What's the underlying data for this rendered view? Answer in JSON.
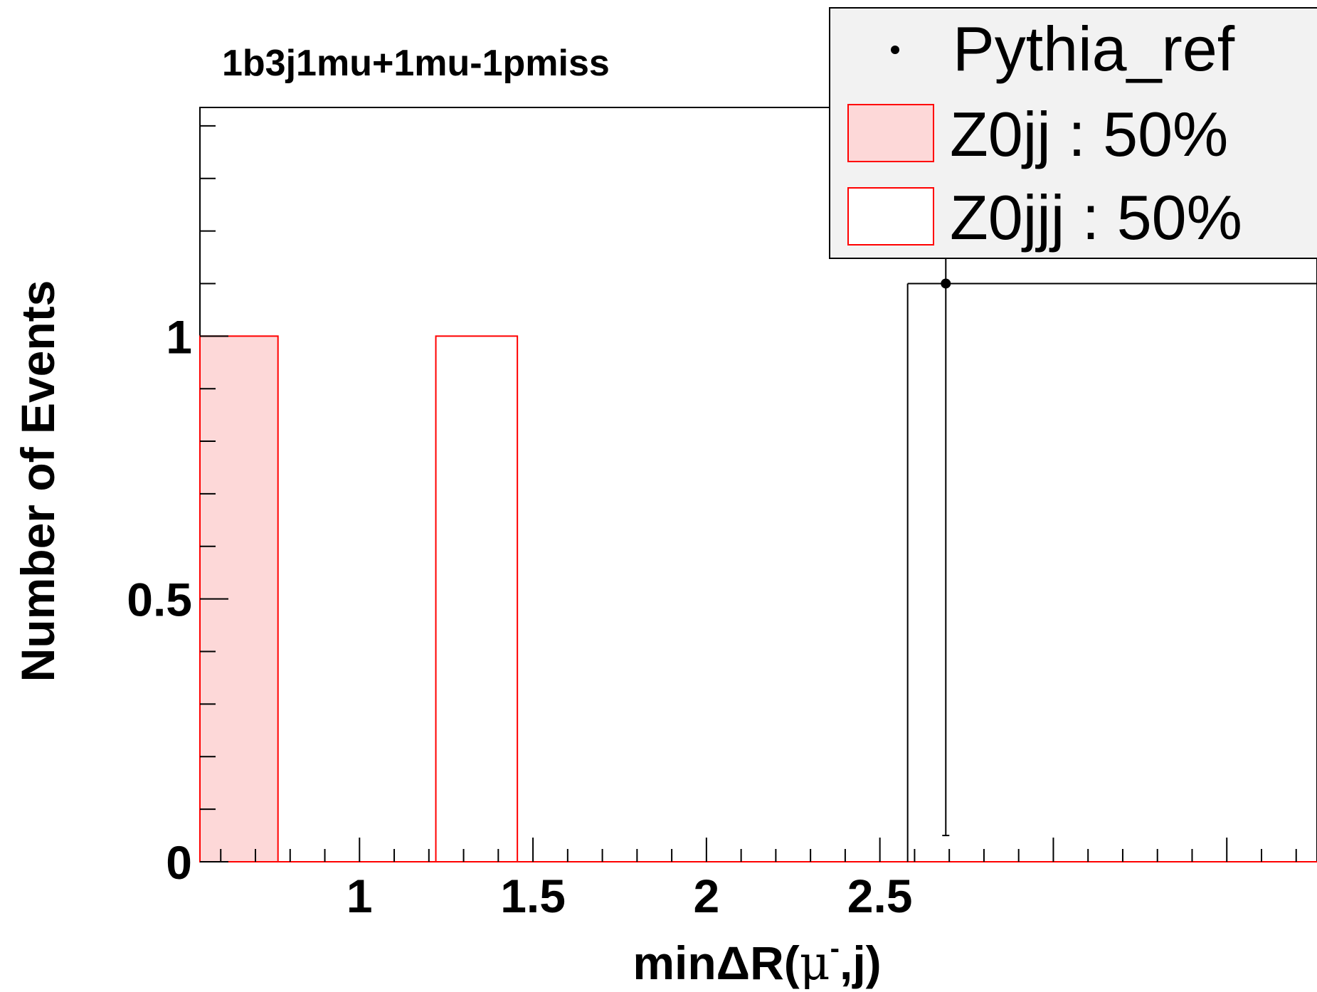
{
  "chart_data": {
    "type": "bar",
    "title": "1b3j1mu+1mu-1pmiss",
    "xlabel_parts": [
      "min",
      "ΔR(",
      "μ",
      "-",
      ",j)"
    ],
    "ylabel": "Number of Events",
    "xlim": [
      0.54,
      3.76
    ],
    "ylim": [
      0,
      1.435
    ],
    "x_ticks": [
      {
        "value": 1,
        "label": "1"
      },
      {
        "value": 1.5,
        "label": "1.5"
      },
      {
        "value": 2,
        "label": "2"
      },
      {
        "value": 2.5,
        "label": "2.5"
      }
    ],
    "y_ticks": [
      {
        "value": 0,
        "label": "0"
      },
      {
        "value": 0.5,
        "label": "0.5"
      },
      {
        "value": 1,
        "label": "1"
      }
    ],
    "series": [
      {
        "name": "Z0jj : 50%",
        "style": "filled",
        "fill": "#fdd8d8",
        "stroke": "#ff0000",
        "bins": [
          {
            "x0": 0.54,
            "x1": 0.765,
            "value": 1
          }
        ]
      },
      {
        "name": "Z0jjj : 50%",
        "style": "hollow",
        "fill": "#ffffff",
        "stroke": "#ff0000",
        "bins": [
          {
            "x0": 1.22,
            "x1": 1.455,
            "value": 1
          }
        ]
      },
      {
        "name": "Pythia_ref",
        "style": "points",
        "color": "#000000",
        "points": [
          {
            "x": 2.69,
            "y": 1.1,
            "yerr_low": 1.05,
            "yerr_high": 1.05,
            "bin": [
              2.58,
              2.8
            ]
          }
        ]
      }
    ],
    "legend": {
      "position": "top-right",
      "background": "#f2f2f2",
      "entries": [
        {
          "label": "Pythia_ref",
          "marker": "point"
        },
        {
          "label": "Z0jj : 50%",
          "marker": "filled-box"
        },
        {
          "label": "Z0jjj : 50%",
          "marker": "hollow-box"
        }
      ]
    }
  }
}
